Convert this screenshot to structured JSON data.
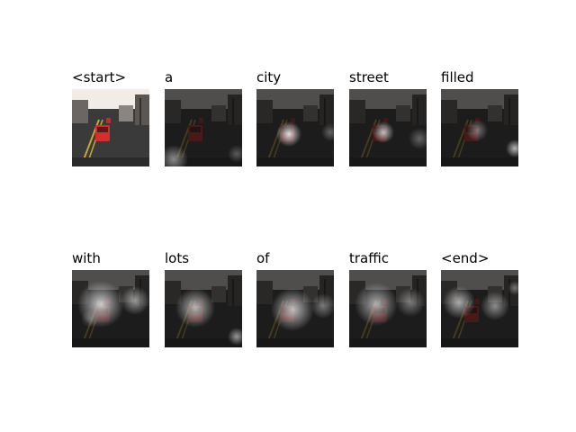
{
  "figure": {
    "words": [
      "<start>",
      "a",
      "city",
      "street",
      "filled",
      "with",
      "lots",
      "of",
      "traffic",
      "<end>"
    ],
    "colors": {
      "overlay_dark": "#111111",
      "overlay_light": "#e8e8e8",
      "car_red": "#d22f2f",
      "road": "#3a3a3a",
      "sky": "#f1ece8"
    }
  }
}
